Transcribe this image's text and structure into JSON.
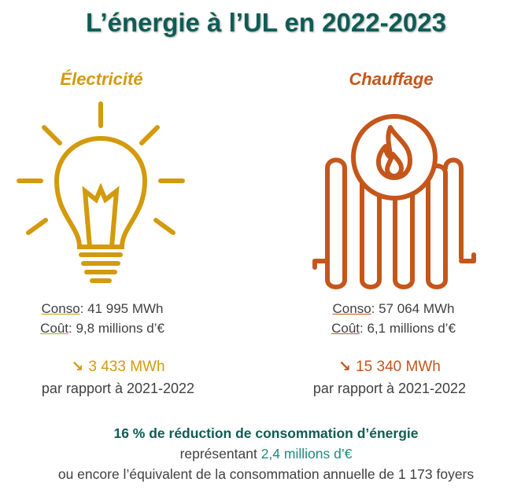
{
  "title": "L’énergie à l’UL en 2022-2023",
  "colors": {
    "title": "#0f5c55",
    "electricity": "#d39a0d",
    "heating": "#c5561b",
    "highlight": "#1f8a80"
  },
  "electricity": {
    "heading": "Électricité",
    "icon": "lightbulb-icon",
    "conso_label": "Conso",
    "conso_value": ": 41 995 MWh",
    "cout_label": "Coût",
    "cout_value": ": 9,8 millions d’€",
    "reduction_arrow": "↘",
    "reduction": "3 433 MWh",
    "comparison": "par rapport à 2021-2022"
  },
  "heating": {
    "heading": "Chauffage",
    "icon": "radiator-flame-icon",
    "conso_label": "Conso",
    "conso_value": ": 57 064 MWh",
    "cout_label": "Coût",
    "cout_value": ": 6,1 millions d’€",
    "reduction_arrow": "↘",
    "reduction": "15 340 MWh",
    "comparison": "par rapport à 2021-2022"
  },
  "footer": {
    "line1": "16 % de réduction de consommation d’énergie",
    "line2_prefix": "représentant ",
    "line2_highlight": "2,4 millions d’€",
    "line3": "ou encore l’équivalent de la consommation annuelle de 1 173 foyers"
  }
}
